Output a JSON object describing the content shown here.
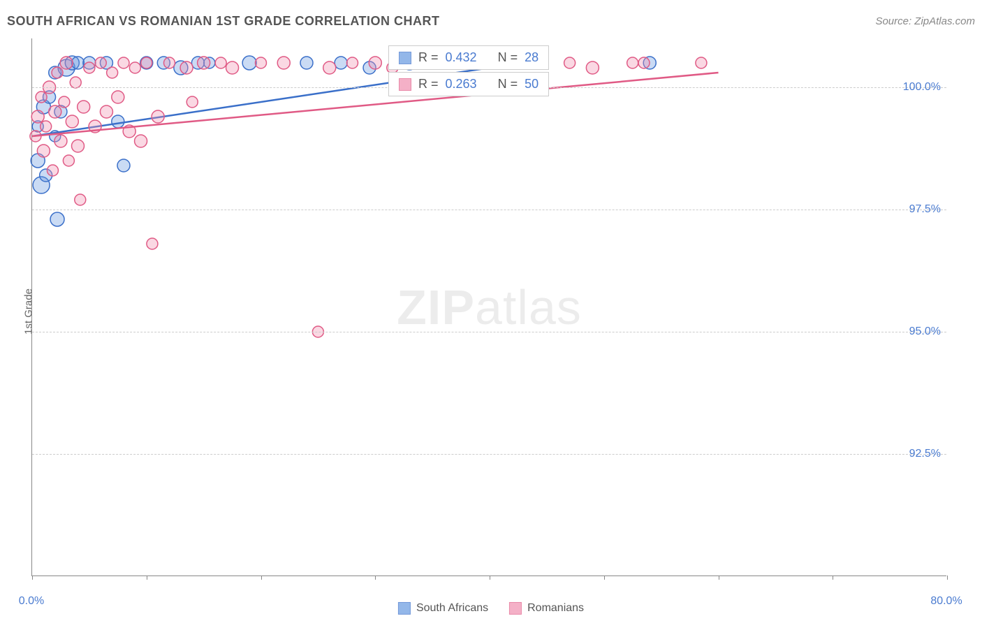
{
  "title": "SOUTH AFRICAN VS ROMANIAN 1ST GRADE CORRELATION CHART",
  "source": "Source: ZipAtlas.com",
  "ylabel": "1st Grade",
  "watermark": {
    "bold": "ZIP",
    "light": "atlas"
  },
  "chart": {
    "type": "scatter",
    "background_color": "#ffffff",
    "grid_color": "#cccccc",
    "axis_color": "#888888",
    "xlim": [
      0,
      80
    ],
    "ylim": [
      90,
      101
    ],
    "yticks": [
      {
        "v": 100.0,
        "label": "100.0%"
      },
      {
        "v": 97.5,
        "label": "97.5%"
      },
      {
        "v": 95.0,
        "label": "95.0%"
      },
      {
        "v": 92.5,
        "label": "92.5%"
      }
    ],
    "xticks": [
      0,
      10,
      20,
      30,
      40,
      50,
      60,
      70,
      80
    ],
    "xtick_labels": {
      "0": "0.0%",
      "80": "80.0%"
    },
    "marker_radius": 9,
    "marker_fill_opacity": 0.35,
    "marker_stroke_width": 1.5,
    "series": [
      {
        "name": "South Africans",
        "color": "#6699e0",
        "stroke": "#3a6fc9",
        "R": "0.432",
        "N": "28",
        "trend": {
          "x1": 0,
          "y1": 99.0,
          "x2": 40,
          "y2": 100.4,
          "width": 2.5
        },
        "points": [
          {
            "x": 0.5,
            "y": 98.5,
            "r": 10
          },
          {
            "x": 0.5,
            "y": 99.2,
            "r": 8
          },
          {
            "x": 1.0,
            "y": 99.6,
            "r": 10
          },
          {
            "x": 1.5,
            "y": 99.8,
            "r": 9
          },
          {
            "x": 2.0,
            "y": 100.3,
            "r": 9
          },
          {
            "x": 2.5,
            "y": 99.5,
            "r": 9
          },
          {
            "x": 3.0,
            "y": 100.4,
            "r": 12
          },
          {
            "x": 3.5,
            "y": 100.5,
            "r": 10
          },
          {
            "x": 4.0,
            "y": 100.5,
            "r": 9
          },
          {
            "x": 0.8,
            "y": 98.0,
            "r": 12
          },
          {
            "x": 1.2,
            "y": 98.2,
            "r": 9
          },
          {
            "x": 2.0,
            "y": 99.0,
            "r": 8
          },
          {
            "x": 2.2,
            "y": 97.3,
            "r": 10
          },
          {
            "x": 5.0,
            "y": 100.5,
            "r": 9
          },
          {
            "x": 6.5,
            "y": 100.5,
            "r": 9
          },
          {
            "x": 7.5,
            "y": 99.3,
            "r": 9
          },
          {
            "x": 8.0,
            "y": 98.4,
            "r": 9
          },
          {
            "x": 10.0,
            "y": 100.5,
            "r": 9
          },
          {
            "x": 11.5,
            "y": 100.5,
            "r": 9
          },
          {
            "x": 13.0,
            "y": 100.4,
            "r": 10
          },
          {
            "x": 14.5,
            "y": 100.5,
            "r": 9
          },
          {
            "x": 15.5,
            "y": 100.5,
            "r": 8
          },
          {
            "x": 19.0,
            "y": 100.5,
            "r": 10
          },
          {
            "x": 24.0,
            "y": 100.5,
            "r": 9
          },
          {
            "x": 27.0,
            "y": 100.5,
            "r": 9
          },
          {
            "x": 29.5,
            "y": 100.4,
            "r": 9
          },
          {
            "x": 33.0,
            "y": 100.5,
            "r": 10
          },
          {
            "x": 54.0,
            "y": 100.5,
            "r": 9
          }
        ]
      },
      {
        "name": "Romanians",
        "color": "#f090b0",
        "stroke": "#e05a85",
        "R": "0.263",
        "N": "50",
        "trend": {
          "x1": 0,
          "y1": 99.0,
          "x2": 60,
          "y2": 100.3,
          "width": 2.5
        },
        "points": [
          {
            "x": 0.3,
            "y": 99.0,
            "r": 8
          },
          {
            "x": 0.5,
            "y": 99.4,
            "r": 9
          },
          {
            "x": 0.8,
            "y": 99.8,
            "r": 8
          },
          {
            "x": 1.0,
            "y": 98.7,
            "r": 9
          },
          {
            "x": 1.2,
            "y": 99.2,
            "r": 8
          },
          {
            "x": 1.5,
            "y": 100.0,
            "r": 9
          },
          {
            "x": 1.8,
            "y": 98.3,
            "r": 8
          },
          {
            "x": 2.0,
            "y": 99.5,
            "r": 9
          },
          {
            "x": 2.2,
            "y": 100.3,
            "r": 8
          },
          {
            "x": 2.5,
            "y": 98.9,
            "r": 9
          },
          {
            "x": 2.8,
            "y": 99.7,
            "r": 8
          },
          {
            "x": 3.0,
            "y": 100.5,
            "r": 9
          },
          {
            "x": 3.2,
            "y": 98.5,
            "r": 8
          },
          {
            "x": 3.5,
            "y": 99.3,
            "r": 9
          },
          {
            "x": 3.8,
            "y": 100.1,
            "r": 8
          },
          {
            "x": 4.0,
            "y": 98.8,
            "r": 9
          },
          {
            "x": 4.2,
            "y": 97.7,
            "r": 8
          },
          {
            "x": 4.5,
            "y": 99.6,
            "r": 9
          },
          {
            "x": 5.0,
            "y": 100.4,
            "r": 8
          },
          {
            "x": 5.5,
            "y": 99.2,
            "r": 9
          },
          {
            "x": 6.0,
            "y": 100.5,
            "r": 8
          },
          {
            "x": 6.5,
            "y": 99.5,
            "r": 9
          },
          {
            "x": 7.0,
            "y": 100.3,
            "r": 8
          },
          {
            "x": 7.5,
            "y": 99.8,
            "r": 9
          },
          {
            "x": 8.0,
            "y": 100.5,
            "r": 8
          },
          {
            "x": 8.5,
            "y": 99.1,
            "r": 9
          },
          {
            "x": 9.0,
            "y": 100.4,
            "r": 8
          },
          {
            "x": 9.5,
            "y": 98.9,
            "r": 9
          },
          {
            "x": 10.0,
            "y": 100.5,
            "r": 8
          },
          {
            "x": 10.5,
            "y": 96.8,
            "r": 8
          },
          {
            "x": 11.0,
            "y": 99.4,
            "r": 9
          },
          {
            "x": 12.0,
            "y": 100.5,
            "r": 8
          },
          {
            "x": 13.5,
            "y": 100.4,
            "r": 9
          },
          {
            "x": 14.0,
            "y": 99.7,
            "r": 8
          },
          {
            "x": 15.0,
            "y": 100.5,
            "r": 9
          },
          {
            "x": 16.5,
            "y": 100.5,
            "r": 8
          },
          {
            "x": 17.5,
            "y": 100.4,
            "r": 9
          },
          {
            "x": 20.0,
            "y": 100.5,
            "r": 8
          },
          {
            "x": 22.0,
            "y": 100.5,
            "r": 9
          },
          {
            "x": 25.0,
            "y": 95.0,
            "r": 8
          },
          {
            "x": 26.0,
            "y": 100.4,
            "r": 9
          },
          {
            "x": 28.0,
            "y": 100.5,
            "r": 8
          },
          {
            "x": 30.0,
            "y": 100.5,
            "r": 9
          },
          {
            "x": 31.5,
            "y": 100.4,
            "r": 8
          },
          {
            "x": 35.0,
            "y": 100.5,
            "r": 9
          },
          {
            "x": 47.0,
            "y": 100.5,
            "r": 8
          },
          {
            "x": 49.0,
            "y": 100.4,
            "r": 9
          },
          {
            "x": 52.5,
            "y": 100.5,
            "r": 8
          },
          {
            "x": 53.5,
            "y": 100.5,
            "r": 8
          },
          {
            "x": 58.5,
            "y": 100.5,
            "r": 8
          }
        ]
      }
    ]
  },
  "legend": {
    "series1_label": "South Africans",
    "series2_label": "Romanians",
    "r_prefix": "R =",
    "n_prefix": "N ="
  }
}
